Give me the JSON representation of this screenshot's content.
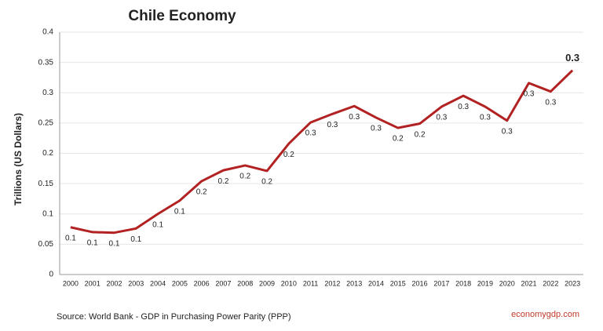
{
  "chart_data": {
    "type": "line",
    "title": "Chile Economy",
    "y_label": "Trillions (US Dollars)",
    "source": "Source:  World Bank -  GDP  in Purchasing Power Parity (PPP)",
    "brand": "economygdp.com",
    "categories": [
      "2000",
      "2001",
      "2002",
      "2003",
      "2004",
      "2005",
      "2006",
      "2007",
      "2008",
      "2009",
      "2010",
      "2011",
      "2012",
      "2013",
      "2014",
      "2015",
      "2016",
      "2017",
      "2018",
      "2019",
      "2020",
      "2021",
      "2022",
      "2023"
    ],
    "values": [
      0.078,
      0.07,
      0.069,
      0.076,
      0.1,
      0.122,
      0.154,
      0.172,
      0.18,
      0.171,
      0.216,
      0.251,
      0.265,
      0.278,
      0.259,
      0.242,
      0.249,
      0.277,
      0.295,
      0.277,
      0.254,
      0.316,
      0.302,
      0.337
    ],
    "value_labels": [
      "0.1",
      "0.1",
      "0.1",
      "0.1",
      "0.1",
      "0.1",
      "0.2",
      "0.2",
      "0.2",
      "0.2",
      "0.2",
      "0.3",
      "0.3",
      "0.3",
      "0.3",
      "0.2",
      "0.2",
      "0.3",
      "0.3",
      "0.3",
      "0.3",
      "0.3",
      "0.3",
      "0.3"
    ],
    "color": "#b22222",
    "ylim": [
      0,
      0.4
    ],
    "yticks": [
      0,
      0.05,
      0.1,
      0.15,
      0.2,
      0.25,
      0.3,
      0.35,
      0.4
    ],
    "grid": true
  }
}
